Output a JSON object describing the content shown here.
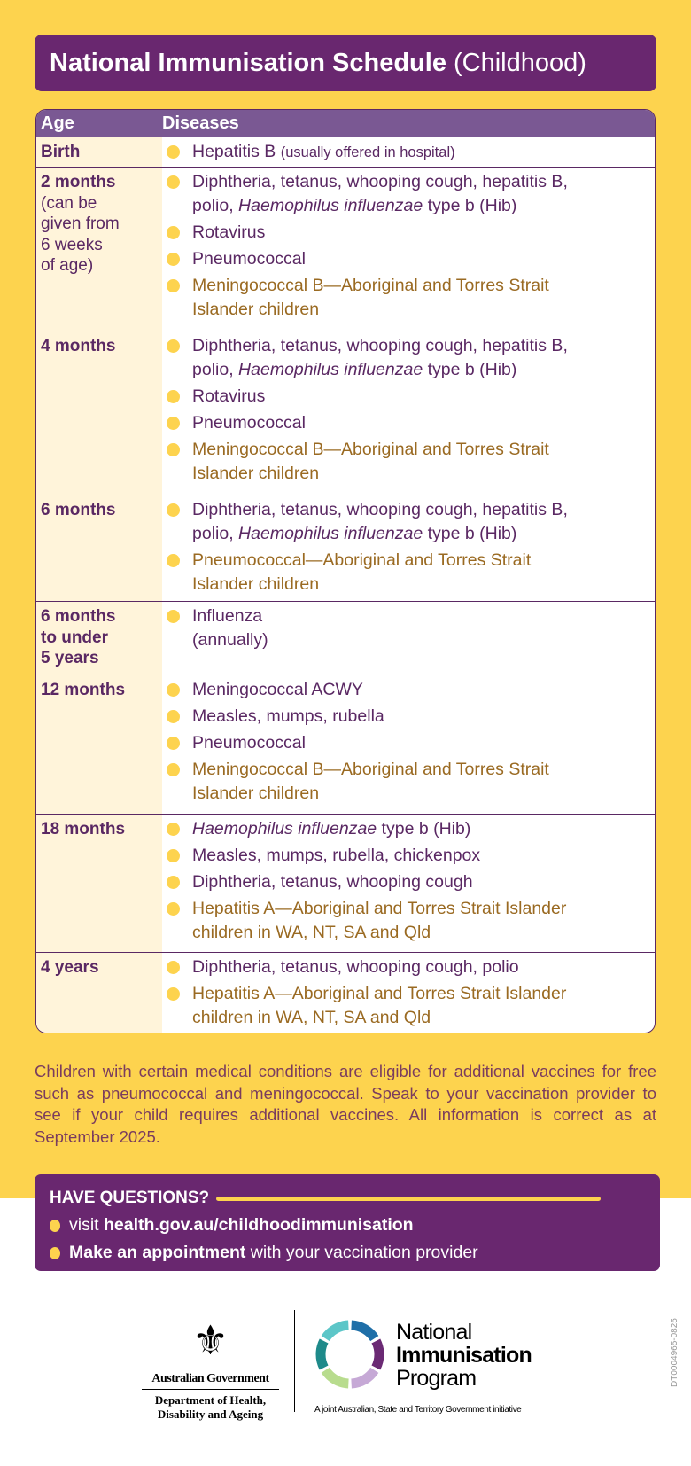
{
  "colors": {
    "yellow": "#FDD34E",
    "purple": "#69276F",
    "header_purple": "#7A5893",
    "highlight_brown": "#9A6A22",
    "text_purple": "#5A2863"
  },
  "title": {
    "bold": "National Immunisation Schedule",
    "regular": "(Childhood)"
  },
  "table": {
    "headers": [
      "Age",
      "Diseases"
    ],
    "rows": [
      {
        "age": "Birth",
        "age_note": [],
        "items": [
          {
            "highlight": false,
            "lines": [
              [
                {
                  "t": "Hepatitis B "
                },
                {
                  "t": "(usually offered in hospital)",
                  "s": "note"
                }
              ]
            ]
          }
        ]
      },
      {
        "age": "2 months",
        "age_note": [
          "(can be",
          "given from",
          "6 weeks",
          "of age)"
        ],
        "items": [
          {
            "highlight": false,
            "lines": [
              [
                {
                  "t": "Diphtheria, tetanus, whooping cough, hepatitis B,"
                }
              ],
              [
                {
                  "t": "polio, "
                },
                {
                  "t": "Haemophilus influenzae",
                  "s": "it"
                },
                {
                  "t": " type b (Hib)"
                }
              ]
            ]
          },
          {
            "highlight": false,
            "lines": [
              [
                {
                  "t": "Rotavirus"
                }
              ]
            ]
          },
          {
            "highlight": false,
            "lines": [
              [
                {
                  "t": "Pneumococcal"
                }
              ]
            ]
          },
          {
            "highlight": true,
            "lines": [
              [
                {
                  "t": "Meningococcal B—Aboriginal and Torres Strait"
                }
              ],
              [
                {
                  "t": "Islander children"
                }
              ]
            ]
          }
        ]
      },
      {
        "age": "4 months",
        "age_note": [],
        "items": [
          {
            "highlight": false,
            "lines": [
              [
                {
                  "t": "Diphtheria, tetanus, whooping cough, hepatitis B,"
                }
              ],
              [
                {
                  "t": "polio, "
                },
                {
                  "t": "Haemophilus influenzae",
                  "s": "it"
                },
                {
                  "t": " type b (Hib)"
                }
              ]
            ]
          },
          {
            "highlight": false,
            "lines": [
              [
                {
                  "t": "Rotavirus"
                }
              ]
            ]
          },
          {
            "highlight": false,
            "lines": [
              [
                {
                  "t": "Pneumococcal"
                }
              ]
            ]
          },
          {
            "highlight": true,
            "lines": [
              [
                {
                  "t": "Meningococcal B—Aboriginal and Torres Strait"
                }
              ],
              [
                {
                  "t": "Islander children"
                }
              ]
            ]
          }
        ]
      },
      {
        "age": "6 months",
        "age_note": [],
        "items": [
          {
            "highlight": false,
            "lines": [
              [
                {
                  "t": "Diphtheria, tetanus, whooping cough, hepatitis B,"
                }
              ],
              [
                {
                  "t": "polio, "
                },
                {
                  "t": "Haemophilus influenzae",
                  "s": "it"
                },
                {
                  "t": " type b (Hib)"
                }
              ]
            ]
          },
          {
            "highlight": true,
            "lines": [
              [
                {
                  "t": "Pneumococcal—Aboriginal and Torres Strait"
                }
              ],
              [
                {
                  "t": "Islander children"
                }
              ]
            ]
          }
        ]
      },
      {
        "age": "6 months to under 5 years",
        "age_lines": [
          "6 months",
          "to under",
          "5 years"
        ],
        "age_note": [],
        "items": [
          {
            "highlight": false,
            "lines": [
              [
                {
                  "t": "Influenza"
                }
              ],
              [
                {
                  "t": "(annually)"
                }
              ]
            ]
          }
        ]
      },
      {
        "age": "12 months",
        "age_note": [],
        "items": [
          {
            "highlight": false,
            "lines": [
              [
                {
                  "t": "Meningococcal ACWY"
                }
              ]
            ]
          },
          {
            "highlight": false,
            "lines": [
              [
                {
                  "t": "Measles, mumps, rubella"
                }
              ]
            ]
          },
          {
            "highlight": false,
            "lines": [
              [
                {
                  "t": "Pneumococcal"
                }
              ]
            ]
          },
          {
            "highlight": true,
            "lines": [
              [
                {
                  "t": "Meningococcal B—Aboriginal and Torres Strait"
                }
              ],
              [
                {
                  "t": "Islander children"
                }
              ]
            ]
          }
        ]
      },
      {
        "age": "18 months",
        "age_note": [],
        "items": [
          {
            "highlight": false,
            "lines": [
              [
                {
                  "t": "Haemophilus influenzae",
                  "s": "it"
                },
                {
                  "t": " type b (Hib)"
                }
              ]
            ]
          },
          {
            "highlight": false,
            "lines": [
              [
                {
                  "t": "Measles, mumps, rubella, chickenpox"
                }
              ]
            ]
          },
          {
            "highlight": false,
            "lines": [
              [
                {
                  "t": "Diphtheria, tetanus, whooping cough"
                }
              ]
            ]
          },
          {
            "highlight": true,
            "lines": [
              [
                {
                  "t": "Hepatitis A—Aboriginal and Torres Strait Islander"
                }
              ],
              [
                {
                  "t": "children in WA, NT, SA and Qld"
                }
              ]
            ]
          }
        ]
      },
      {
        "age": "4 years",
        "age_note": [],
        "items": [
          {
            "highlight": false,
            "lines": [
              [
                {
                  "t": "Diphtheria, tetanus, whooping cough, polio"
                }
              ]
            ]
          },
          {
            "highlight": true,
            "lines": [
              [
                {
                  "t": "Hepatitis A—Aboriginal and Torres Strait Islander"
                }
              ],
              [
                {
                  "t": "children in WA, NT, SA and Qld"
                }
              ]
            ]
          }
        ]
      }
    ]
  },
  "footnote": "Children with certain medical conditions are eligible for additional vaccines for free such as pneumococcal and meningococcal. Speak to your vaccination provider to see if your child requires additional vaccines. All information is correct as at September 2025.",
  "questions": {
    "heading": "HAVE QUESTIONS?",
    "items": [
      {
        "pre": "visit ",
        "bold": "health.gov.au/childhoodimmunisation",
        "post": ""
      },
      {
        "pre": "",
        "bold": "Make an appointment",
        "post": " with your vaccination provider"
      }
    ]
  },
  "logos": {
    "gov_name": "Australian Government",
    "gov_dept": "Department of Health, Disability and Ageing",
    "nip_name": [
      "National",
      "Immunisation",
      "Program"
    ],
    "nip_tagline": "A joint Australian, State and Territory Government initiative",
    "nip_ring_colors": [
      "#1F6FA8",
      "#6B2A74",
      "#C6A9D6",
      "#B8DC8E",
      "#1E8A8A",
      "#5CC6C8"
    ]
  },
  "doc_code": "DT0004965-0825"
}
